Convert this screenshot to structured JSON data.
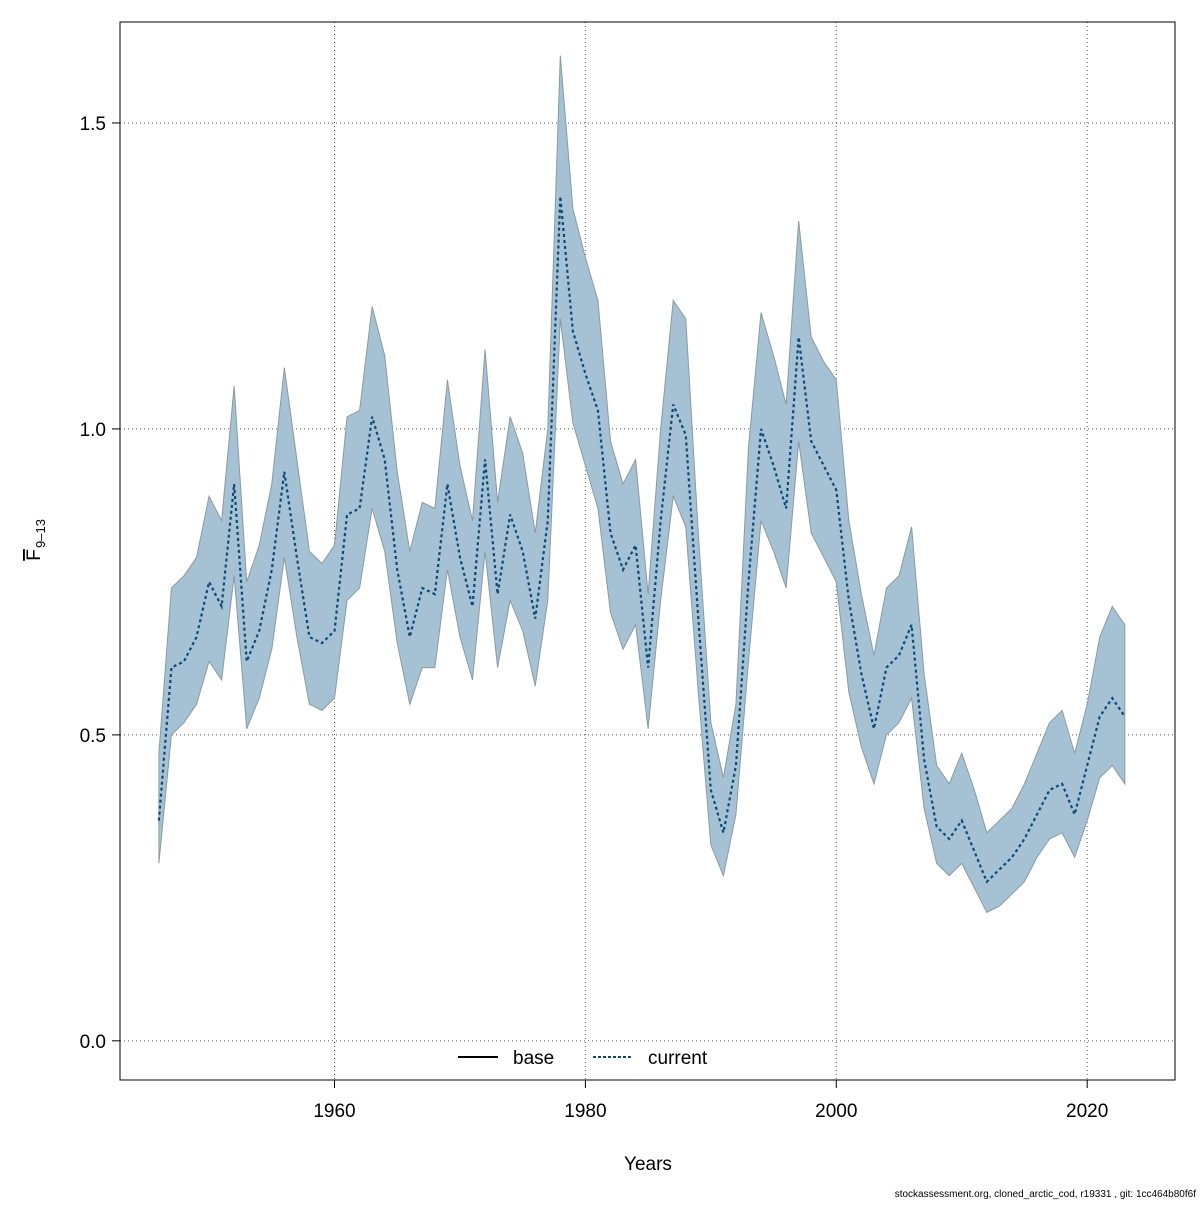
{
  "chart_data": {
    "type": "line",
    "xlabel": "Years",
    "ylabel": {
      "main": "F",
      "sub": "9–13"
    },
    "footer": "stockassessment.org, cloned_arctic_cod, r19331 , git: 1cc464b80f6f",
    "xlim": [
      1942.9,
      2027.0
    ],
    "ylim": [
      -0.064,
      1.665
    ],
    "xticks": [
      1960,
      1980,
      2000,
      2020
    ],
    "yticks": [
      {
        "value": 0,
        "label": "0.0"
      },
      0.5,
      {
        "value": 1,
        "label": "1.0"
      },
      1.5
    ],
    "grid": true,
    "legend": "bottom",
    "band_color": "#a4c2d4",
    "x": [
      1946,
      1947,
      1948,
      1949,
      1950,
      1951,
      1952,
      1953,
      1954,
      1955,
      1956,
      1957,
      1958,
      1959,
      1960,
      1961,
      1962,
      1963,
      1964,
      1965,
      1966,
      1967,
      1968,
      1969,
      1970,
      1971,
      1972,
      1973,
      1974,
      1975,
      1976,
      1977,
      1978,
      1979,
      1980,
      1981,
      1982,
      1983,
      1984,
      1985,
      1986,
      1987,
      1988,
      1989,
      1990,
      1991,
      1992,
      1993,
      1994,
      1995,
      1996,
      1997,
      1998,
      1999,
      2000,
      2001,
      2002,
      2003,
      2004,
      2005,
      2006,
      2007,
      2008,
      2009,
      2010,
      2011,
      2012,
      2013,
      2014,
      2015,
      2016,
      2017,
      2018,
      2019,
      2020,
      2021,
      2022,
      2023
    ],
    "series": [
      {
        "name": "base",
        "color": "#000000"
      },
      {
        "name": "current",
        "color": "#0a4a78",
        "values": [
          0.36,
          0.61,
          0.62,
          0.66,
          0.75,
          0.71,
          0.91,
          0.62,
          0.67,
          0.77,
          0.93,
          0.79,
          0.66,
          0.65,
          0.67,
          0.86,
          0.87,
          1.02,
          0.95,
          0.77,
          0.66,
          0.74,
          0.73,
          0.91,
          0.79,
          0.71,
          0.95,
          0.73,
          0.86,
          0.8,
          0.69,
          0.85,
          1.38,
          1.16,
          1.09,
          1.03,
          0.83,
          0.77,
          0.81,
          0.61,
          0.85,
          1.04,
          0.99,
          0.69,
          0.41,
          0.34,
          0.45,
          0.75,
          1.0,
          0.94,
          0.87,
          1.15,
          0.98,
          0.94,
          0.9,
          0.72,
          0.6,
          0.51,
          0.61,
          0.63,
          0.68,
          0.46,
          0.35,
          0.33,
          0.36,
          0.31,
          0.26,
          0.28,
          0.3,
          0.33,
          0.37,
          0.41,
          0.42,
          0.37,
          0.45,
          0.53,
          0.56,
          0.53
        ],
        "lower": [
          0.29,
          0.5,
          0.52,
          0.55,
          0.62,
          0.59,
          0.76,
          0.51,
          0.56,
          0.64,
          0.79,
          0.66,
          0.55,
          0.54,
          0.56,
          0.72,
          0.74,
          0.87,
          0.8,
          0.65,
          0.55,
          0.61,
          0.61,
          0.77,
          0.66,
          0.59,
          0.8,
          0.61,
          0.72,
          0.67,
          0.58,
          0.72,
          1.18,
          1.01,
          0.94,
          0.87,
          0.7,
          0.64,
          0.68,
          0.51,
          0.72,
          0.89,
          0.84,
          0.57,
          0.32,
          0.27,
          0.37,
          0.62,
          0.85,
          0.8,
          0.74,
          0.98,
          0.83,
          0.79,
          0.75,
          0.57,
          0.48,
          0.42,
          0.5,
          0.52,
          0.56,
          0.38,
          0.29,
          0.27,
          0.29,
          0.25,
          0.21,
          0.22,
          0.24,
          0.26,
          0.3,
          0.33,
          0.34,
          0.3,
          0.36,
          0.43,
          0.45,
          0.42
        ],
        "upper": [
          0.47,
          0.74,
          0.76,
          0.79,
          0.89,
          0.85,
          1.07,
          0.75,
          0.81,
          0.91,
          1.1,
          0.95,
          0.8,
          0.78,
          0.81,
          1.02,
          1.03,
          1.2,
          1.12,
          0.93,
          0.8,
          0.88,
          0.87,
          1.08,
          0.94,
          0.85,
          1.13,
          0.88,
          1.02,
          0.96,
          0.83,
          1.0,
          1.61,
          1.36,
          1.28,
          1.21,
          0.98,
          0.91,
          0.95,
          0.73,
          1.0,
          1.21,
          1.18,
          0.83,
          0.52,
          0.43,
          0.55,
          0.97,
          1.19,
          1.12,
          1.04,
          1.34,
          1.15,
          1.11,
          1.08,
          0.85,
          0.73,
          0.63,
          0.74,
          0.76,
          0.84,
          0.6,
          0.45,
          0.42,
          0.47,
          0.41,
          0.34,
          0.36,
          0.38,
          0.42,
          0.47,
          0.52,
          0.54,
          0.47,
          0.55,
          0.66,
          0.71,
          0.68
        ]
      }
    ]
  }
}
